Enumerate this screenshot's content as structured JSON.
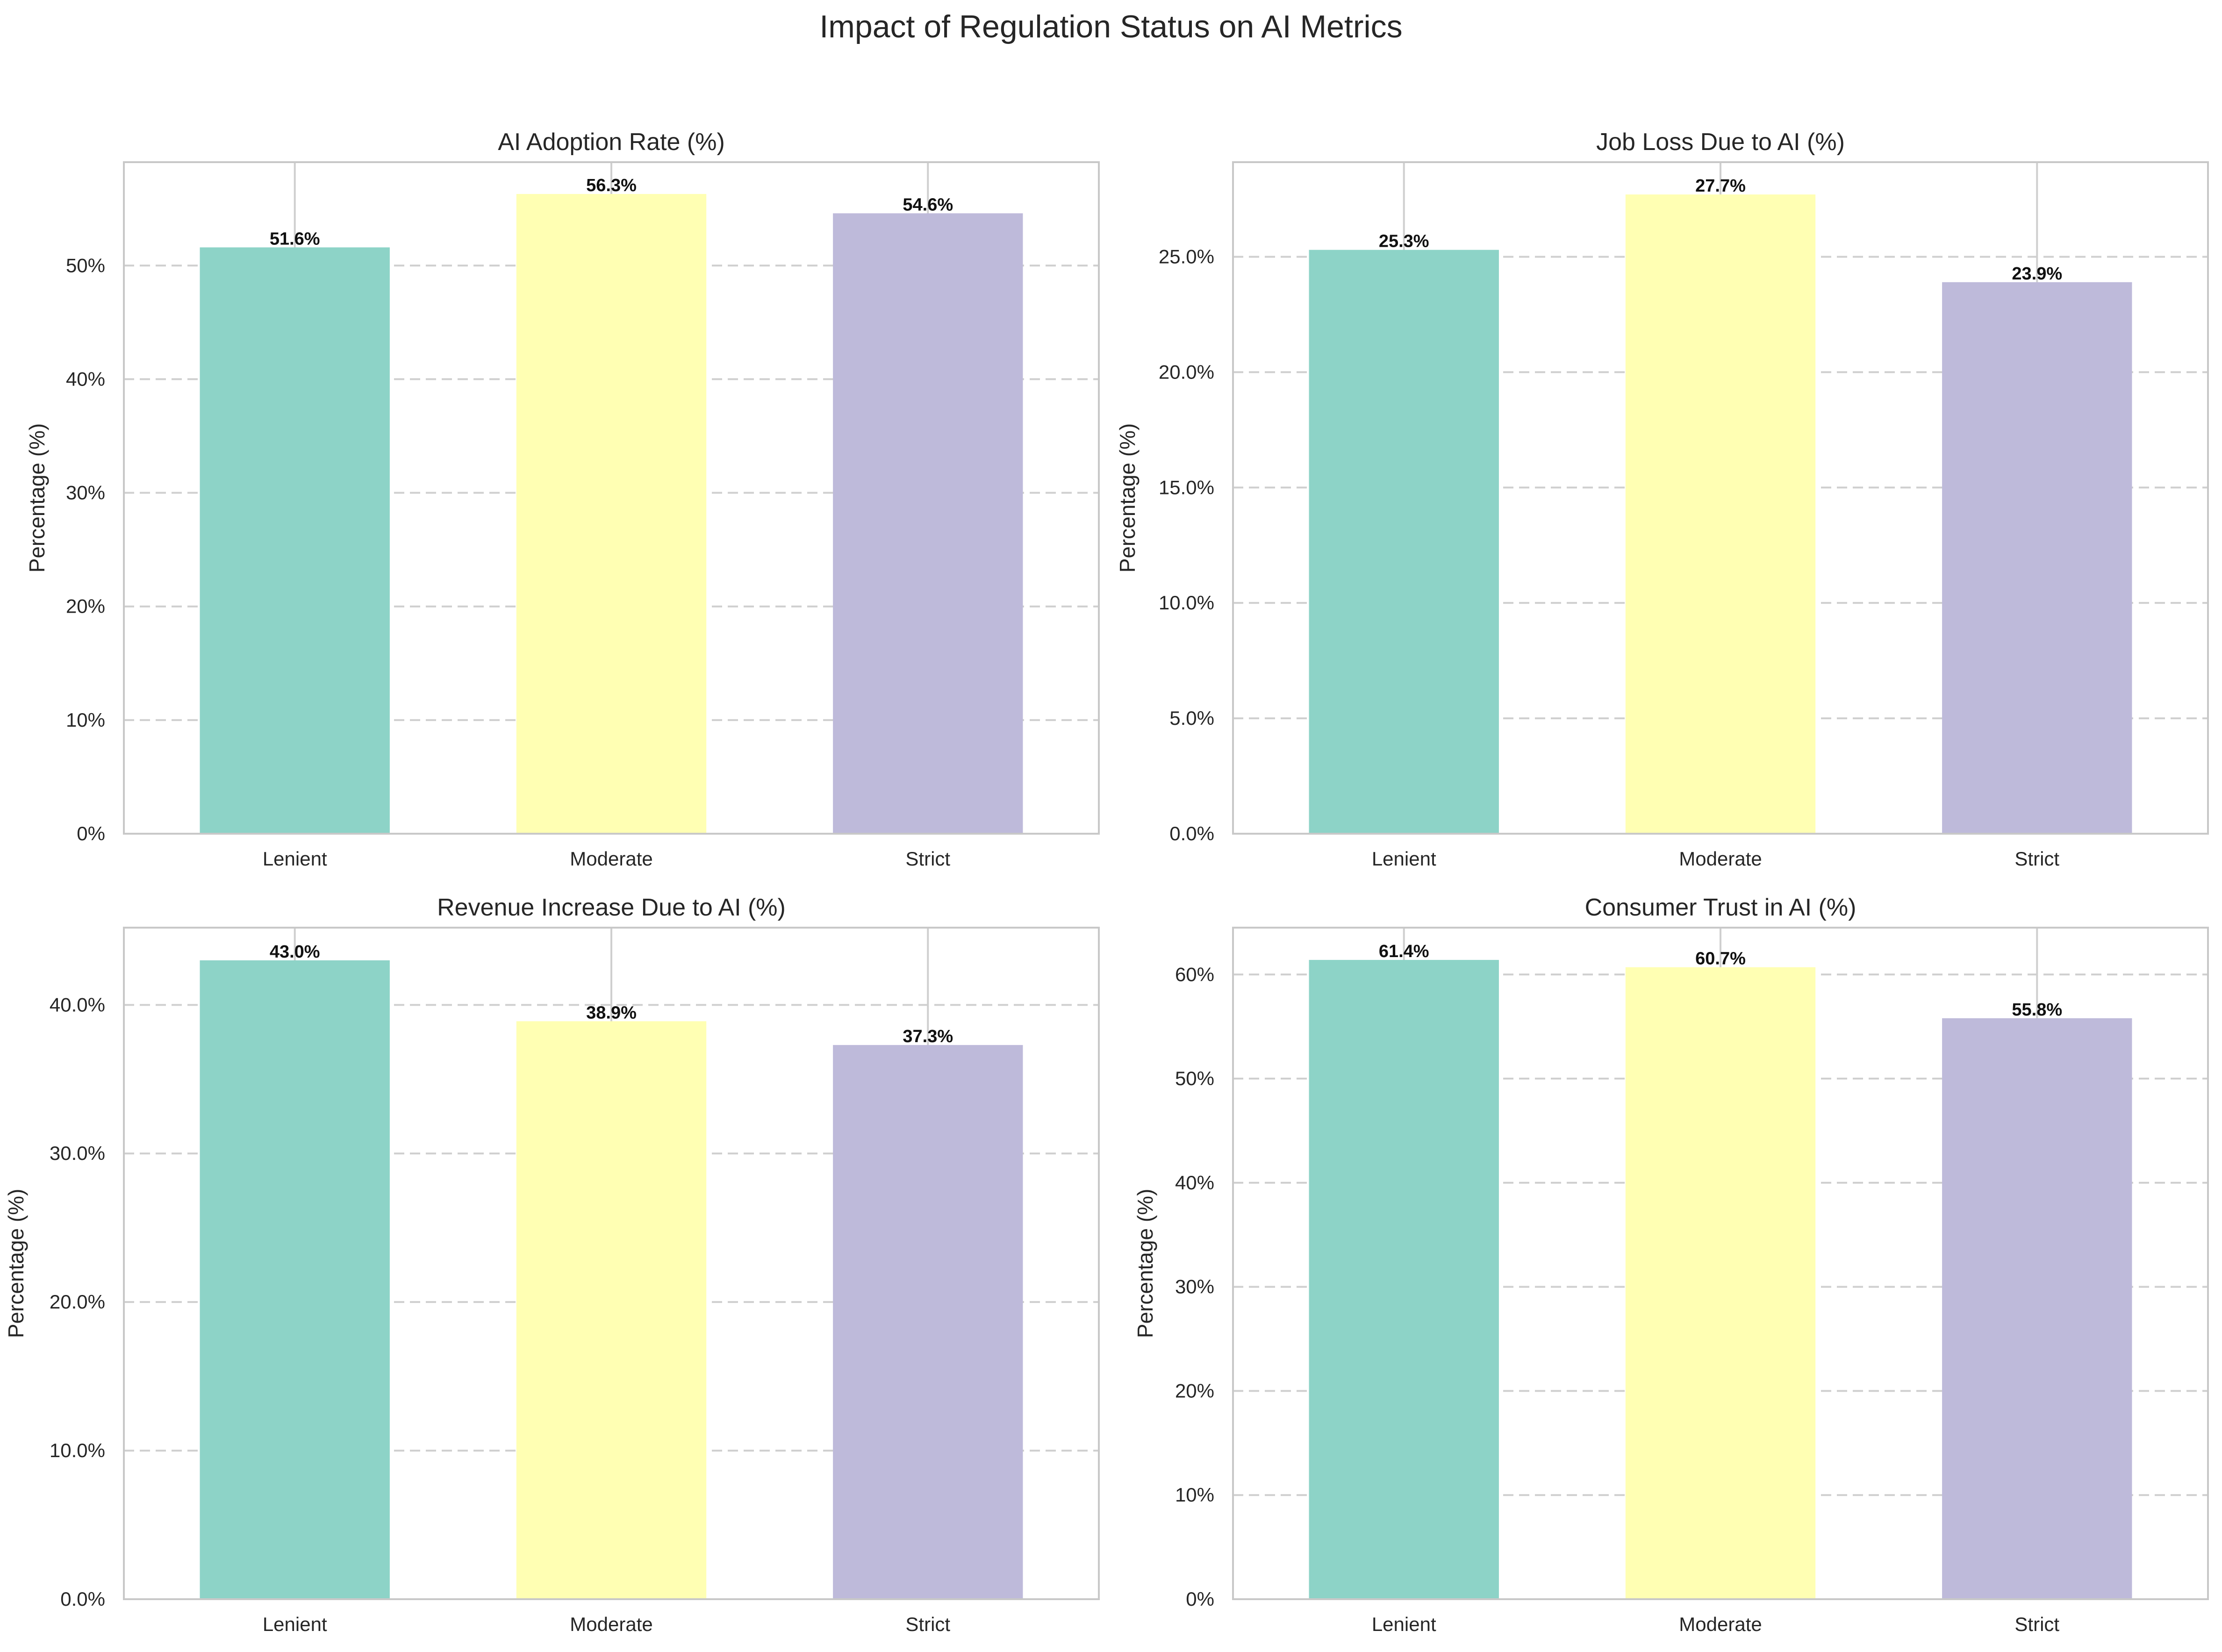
{
  "figure": {
    "title": "Impact of Regulation Status on AI Metrics"
  },
  "chart_data": [
    {
      "type": "bar",
      "title": "AI Adoption Rate (%)",
      "xlabel": "",
      "ylabel": "Percentage (%)",
      "categories": [
        "Lenient",
        "Moderate",
        "Strict"
      ],
      "values": [
        51.6,
        56.3,
        54.6
      ],
      "value_labels": [
        "51.6%",
        "56.3%",
        "54.6%"
      ],
      "ylim": [
        0,
        59.1
      ],
      "yticks": [
        0,
        10,
        20,
        30,
        40,
        50
      ],
      "ytick_labels": [
        "0%",
        "10%",
        "20%",
        "30%",
        "40%",
        "50%"
      ],
      "grid": "y dashed",
      "colors": [
        "#8dd3c7",
        "#ffffb3",
        "#bebada"
      ]
    },
    {
      "type": "bar",
      "title": "Job Loss Due to AI (%)",
      "xlabel": "",
      "ylabel": "Percentage (%)",
      "categories": [
        "Lenient",
        "Moderate",
        "Strict"
      ],
      "values": [
        25.3,
        27.7,
        23.9
      ],
      "value_labels": [
        "25.3%",
        "27.7%",
        "23.9%"
      ],
      "ylim": [
        0,
        29.1
      ],
      "yticks": [
        0,
        5,
        10,
        15,
        20,
        25
      ],
      "ytick_labels": [
        "0.0%",
        "5.0%",
        "10.0%",
        "15.0%",
        "20.0%",
        "25.0%"
      ],
      "grid": "y dashed",
      "colors": [
        "#8dd3c7",
        "#ffffb3",
        "#bebada"
      ]
    },
    {
      "type": "bar",
      "title": "Revenue Increase Due to AI (%)",
      "xlabel": "",
      "ylabel": "Percentage (%)",
      "categories": [
        "Lenient",
        "Moderate",
        "Strict"
      ],
      "values": [
        43.0,
        38.9,
        37.3
      ],
      "value_labels": [
        "43.0%",
        "38.9%",
        "37.3%"
      ],
      "ylim": [
        0,
        45.2
      ],
      "yticks": [
        0,
        10,
        20,
        30,
        40
      ],
      "ytick_labels": [
        "0.0%",
        "10.0%",
        "20.0%",
        "30.0%",
        "40.0%"
      ],
      "grid": "y dashed",
      "colors": [
        "#8dd3c7",
        "#ffffb3",
        "#bebada"
      ]
    },
    {
      "type": "bar",
      "title": "Consumer Trust in AI (%)",
      "xlabel": "",
      "ylabel": "Percentage (%)",
      "categories": [
        "Lenient",
        "Moderate",
        "Strict"
      ],
      "values": [
        61.4,
        60.7,
        55.8
      ],
      "value_labels": [
        "61.4%",
        "60.7%",
        "55.8%"
      ],
      "ylim": [
        0,
        64.5
      ],
      "yticks": [
        0,
        10,
        20,
        30,
        40,
        50,
        60
      ],
      "ytick_labels": [
        "0%",
        "10%",
        "20%",
        "30%",
        "40%",
        "50%",
        "60%"
      ],
      "grid": "y dashed",
      "colors": [
        "#8dd3c7",
        "#ffffb3",
        "#bebada"
      ]
    }
  ]
}
